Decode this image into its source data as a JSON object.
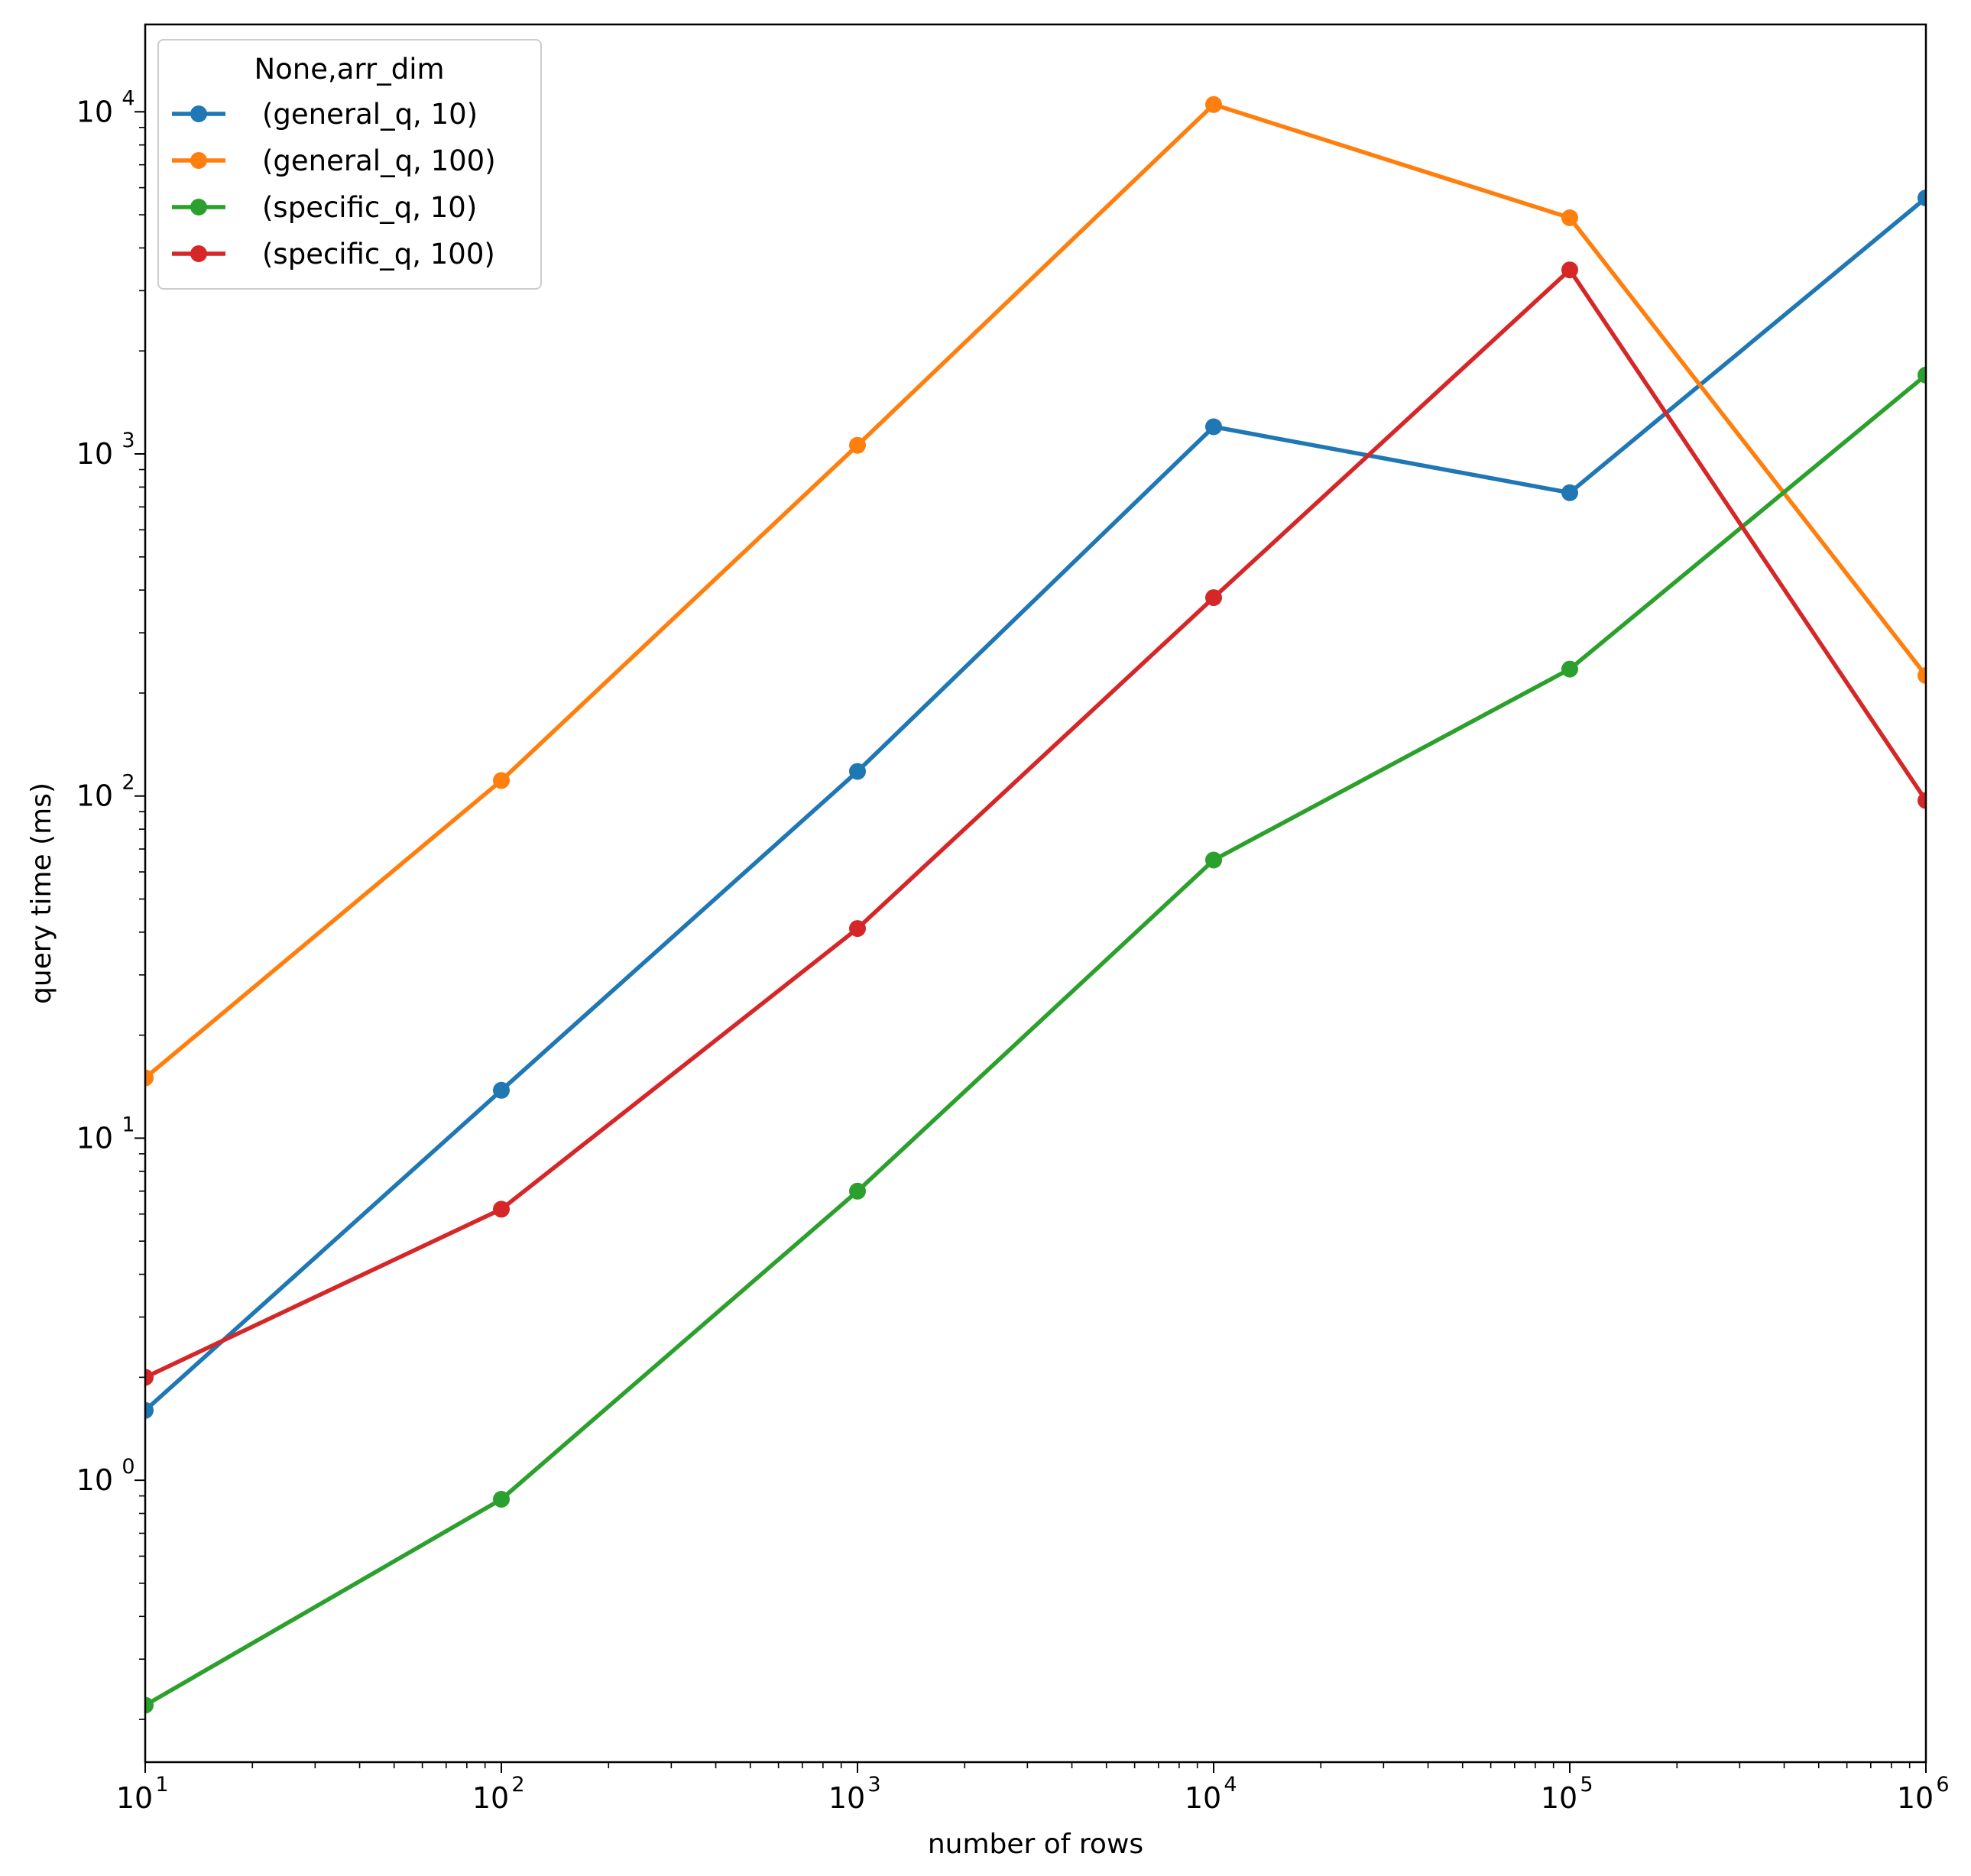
{
  "chart_data": {
    "type": "line",
    "title": "",
    "xlabel": "number of rows",
    "ylabel": "query time (ms)",
    "xscale": "log",
    "yscale": "log",
    "xlim": [
      10,
      1000000
    ],
    "ylim": [
      0.15,
      18000
    ],
    "grid": false,
    "x": [
      10,
      100,
      1000,
      10000,
      100000,
      1000000
    ],
    "x_ticks": [
      {
        "value": 10,
        "base": "10",
        "exp": "1"
      },
      {
        "value": 100,
        "base": "10",
        "exp": "2"
      },
      {
        "value": 1000,
        "base": "10",
        "exp": "3"
      },
      {
        "value": 10000,
        "base": "10",
        "exp": "4"
      },
      {
        "value": 100000,
        "base": "10",
        "exp": "5"
      },
      {
        "value": 1000000,
        "base": "10",
        "exp": "6"
      }
    ],
    "y_ticks": [
      {
        "value": 1,
        "base": "10",
        "exp": "0"
      },
      {
        "value": 10,
        "base": "10",
        "exp": "1"
      },
      {
        "value": 100,
        "base": "10",
        "exp": "2"
      },
      {
        "value": 1000,
        "base": "10",
        "exp": "3"
      },
      {
        "value": 10000,
        "base": "10",
        "exp": "4"
      }
    ],
    "legend": {
      "title": "None,arr_dim",
      "position": "top-left"
    },
    "series": [
      {
        "name": "(general_q, 10)",
        "color": "#1f77b4",
        "values": [
          1.6,
          13.8,
          118,
          1200,
          770,
          5600
        ]
      },
      {
        "name": "(general_q, 100)",
        "color": "#ff7f0e",
        "values": [
          15,
          111,
          1060,
          10500,
          4900,
          225
        ]
      },
      {
        "name": "(specific_q, 10)",
        "color": "#2ca02c",
        "values": [
          0.22,
          0.88,
          7.0,
          65,
          235,
          1700
        ]
      },
      {
        "name": "(specific_q, 100)",
        "color": "#d62728",
        "values": [
          2.0,
          6.2,
          41,
          380,
          3450,
          97
        ]
      }
    ]
  }
}
